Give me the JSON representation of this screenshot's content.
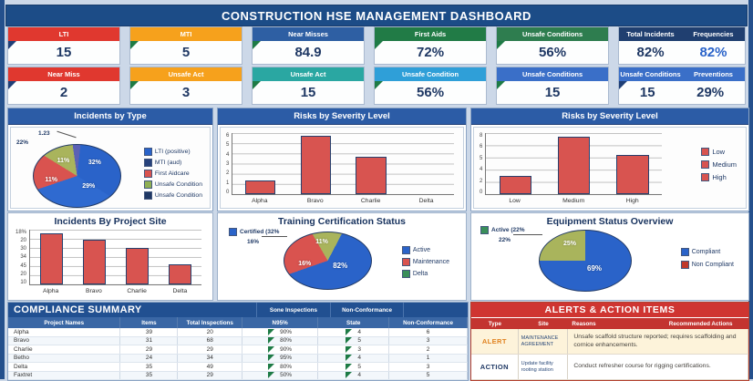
{
  "title": "CONSTRUCTION HSE MANAGEMENT DASHBOARD",
  "kpi_rows": [
    {
      "cards": [
        {
          "label": "LTI",
          "value": "15",
          "color": "#e0382f"
        },
        {
          "label": "MTI",
          "value": "5",
          "color": "#f6a11c"
        },
        {
          "label": "Near Misses",
          "value": "84.9",
          "color": "#2e5fa3"
        },
        {
          "label": "First Aids",
          "value": "72%",
          "color": "#217b46"
        },
        {
          "label": "Unsafe Conditions",
          "value": "56%",
          "color": "#2e7d4f"
        },
        {
          "label": "Total Incidents",
          "label2": "Frequencies",
          "value": "82%",
          "value2": "82%",
          "color": "#203f70"
        }
      ]
    },
    {
      "cards": [
        {
          "label": "Near Miss",
          "value": "2",
          "color": "#e0382f"
        },
        {
          "label": "Unsafe Act",
          "value": "3",
          "color": "#f6a11c"
        },
        {
          "label": "Unsafe Act",
          "value": "15",
          "color": "#2aa7a2"
        },
        {
          "label": "Unsafe Condition",
          "value": "56%",
          "color": "#2f9fd8"
        },
        {
          "label": "Unsafe Conditions",
          "value": "15",
          "color": "#3a6fc8"
        },
        {
          "label": "Unsafe Conditions",
          "label2": "Preventions",
          "value": "15",
          "value2": "29%",
          "color": "#3a6fc8"
        }
      ]
    }
  ],
  "chart_data": [
    {
      "id": "incidents-by-type",
      "type": "pie",
      "title": "Incidents by Type",
      "slices": [
        {
          "label": "32%",
          "value": 32,
          "color": "#2a63c9"
        },
        {
          "label": "29%",
          "value": 29,
          "color": "#2f6ad0"
        },
        {
          "label": "11%",
          "value": 11,
          "color": "#d9534f"
        },
        {
          "label": "11%",
          "value": 11,
          "color": "#a9b45c"
        },
        {
          "label": "1.23",
          "value": 1.23,
          "color": "#5b61b5"
        }
      ],
      "outside_labels": [
        "1.23",
        "22%"
      ],
      "legend": [
        "LTI (positive)",
        "MTI (aud)",
        "First Aidcare",
        "Unsafe Condition",
        "Unsafe Condition"
      ],
      "legend_colors": [
        "#2a63c9",
        "#27427c",
        "#d9534f",
        "#8faf53",
        "#1f3864"
      ],
      "legend_position": "right",
      "render": {
        "start": -8,
        "fractions": [
          0.04,
          0.32,
          0.36,
          0.14,
          0.14
        ],
        "colors": [
          "#5b61b5",
          "#2a63c9",
          "#2f6ad0",
          "#d9534f",
          "#a9b45c"
        ]
      }
    },
    {
      "id": "risks-by-severity-projects",
      "type": "bar",
      "title": "Risks by Severity Level",
      "categories": [
        "Alpha",
        "Bravo",
        "Charlie",
        "Delta"
      ],
      "values": [
        1.5,
        6.2,
        4,
        0
      ],
      "ylim": [
        0,
        6.5
      ],
      "yticks": [
        "6",
        "5",
        "4",
        "3",
        "2",
        "1",
        "0"
      ],
      "bar_color": "#d85450",
      "grid": true
    },
    {
      "id": "risks-by-severity-levels",
      "type": "bar",
      "title": "Risks by Severity Level",
      "categories": [
        "Low",
        "Medium",
        "High"
      ],
      "values": [
        2.5,
        8,
        5.5
      ],
      "ylim": [
        0,
        8.5
      ],
      "yticks": [
        "8",
        "6",
        "5",
        "4",
        "2",
        "0"
      ],
      "legend": [
        "Low",
        "Medium",
        "High"
      ],
      "legend_colors": [
        "#d85450",
        "#d85450",
        "#d85450"
      ],
      "legend_position": "right",
      "bar_color": "#d85450",
      "grid": true
    },
    {
      "id": "incidents-by-project-site",
      "type": "bar",
      "title": "Incidents By Project Site",
      "categories": [
        "Alpha",
        "Bravo",
        "Charlie",
        "Delta"
      ],
      "values": [
        93,
        82,
        67,
        37
      ],
      "ylim": [
        0,
        100
      ],
      "yticks": [
        "18%",
        "20",
        "30",
        "34",
        "45",
        "20",
        "10"
      ],
      "bar_color": "#d85450",
      "grid": true
    },
    {
      "id": "training-certification-status",
      "type": "pie",
      "title": "Training Certification Status",
      "slices": [
        {
          "label": "82%",
          "value": 82,
          "color": "#2a63c9"
        },
        {
          "label": "16%",
          "value": 16,
          "color": "#d9534f"
        },
        {
          "label": "11%",
          "value": 11,
          "color": "#a9b45c"
        }
      ],
      "callout": [
        "Certified (32%",
        "16%"
      ],
      "legend": [
        "Active",
        "Maintenance",
        "Delta"
      ],
      "legend_colors": [
        "#2a63c9",
        "#d9534f",
        "#3a8f5a"
      ],
      "legend_position": "right",
      "render": {
        "start": -30,
        "fractions": [
          0.16,
          0.62,
          0.22
        ],
        "colors": [
          "#a9b45c",
          "#2a63c9",
          "#d9534f"
        ]
      }
    },
    {
      "id": "equipment-status-overview",
      "type": "pie",
      "title": "Equipment Status Overview",
      "slices": [
        {
          "label": "69%",
          "value": 69,
          "color": "#2a63c9"
        },
        {
          "label": "25%",
          "value": 25,
          "color": "#a9b45c"
        }
      ],
      "callout": [
        "Active (22%",
        "22%"
      ],
      "legend": [
        "Compliant",
        "Non Compliant"
      ],
      "legend_colors": [
        "#2a63c9",
        "#c0392b"
      ],
      "legend_position": "right",
      "render": {
        "start": 0,
        "fractions": [
          0.75,
          0.25
        ],
        "colors": [
          "#2a63c9",
          "#a9b45c"
        ]
      }
    }
  ],
  "compliance": {
    "title": "COMPLIANCE SUMMARY",
    "band": [
      "Sone Inspections",
      "Non-Conformance",
      ""
    ],
    "headers": [
      "Project Names",
      "Items",
      "Total Inspections",
      "N95%",
      "State",
      "Non-Conformance"
    ],
    "rows": [
      [
        "Alpha",
        "39",
        "20",
        "90%",
        "4",
        "6"
      ],
      [
        "Bravo",
        "31",
        "68",
        "80%",
        "5",
        "3"
      ],
      [
        "Charlie",
        "29",
        "29",
        "90%",
        "3",
        "2"
      ],
      [
        "Betho",
        "24",
        "34",
        "95%",
        "4",
        "1"
      ],
      [
        "Delta",
        "35",
        "49",
        "80%",
        "5",
        "3"
      ],
      [
        "Faxtret",
        "35",
        "29",
        "50%",
        "4",
        "5"
      ]
    ]
  },
  "alerts": {
    "title": "ALERTS & ACTION ITEMS",
    "headers": [
      "Type",
      "Site",
      "Reasons",
      "Recommended Actions"
    ],
    "rows": [
      {
        "type": "ALERT",
        "site": "MAINTENANCE AGREEMENT",
        "desc": "Unsafe scaffold structure reported; requires scaffolding and cornice enhancements."
      },
      {
        "type": "ACTION",
        "site": "Update facility rooting station",
        "desc": "Conduct refresher course for rigging certifications."
      }
    ]
  },
  "colors": {
    "accent_navy": "#1f3864",
    "accent_blue": "#2a63c9",
    "alert_red": "#cf3531",
    "flag_green": "#1e7b45"
  }
}
